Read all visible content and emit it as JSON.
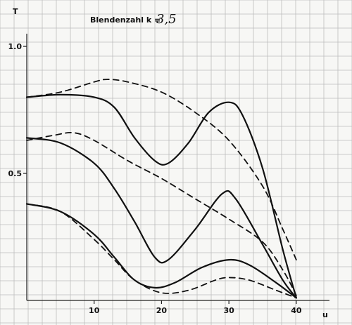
{
  "chart_data": {
    "type": "line",
    "title_prefix": "Blendenzahl k =",
    "title_value": "3,5",
    "ylabel": "T",
    "xlabel": "u",
    "xlim": [
      0,
      42
    ],
    "ylim": [
      0,
      1.05
    ],
    "grid": true,
    "x_ticks": [
      {
        "value": 10,
        "label": "10"
      },
      {
        "value": 20,
        "label": "20"
      },
      {
        "value": 30,
        "label": "30"
      },
      {
        "value": 40,
        "label": "40"
      }
    ],
    "y_ticks": [
      {
        "value": 1.0,
        "label": "1.0"
      },
      {
        "value": 0.5,
        "label": "0.5"
      }
    ],
    "series": [
      {
        "style": "solid",
        "points": [
          [
            0,
            0.8
          ],
          [
            5,
            0.81
          ],
          [
            10,
            0.8
          ],
          [
            13,
            0.76
          ],
          [
            16,
            0.64
          ],
          [
            19,
            0.55
          ],
          [
            21,
            0.54
          ],
          [
            24,
            0.62
          ],
          [
            27,
            0.74
          ],
          [
            30,
            0.78
          ],
          [
            32,
            0.73
          ],
          [
            35,
            0.52
          ],
          [
            38,
            0.2
          ],
          [
            40,
            0.01
          ]
        ]
      },
      {
        "style": "dashed",
        "points": [
          [
            0,
            0.8
          ],
          [
            5,
            0.82
          ],
          [
            10,
            0.86
          ],
          [
            12,
            0.87
          ],
          [
            15,
            0.86
          ],
          [
            20,
            0.82
          ],
          [
            25,
            0.74
          ],
          [
            30,
            0.63
          ],
          [
            35,
            0.45
          ],
          [
            38,
            0.28
          ],
          [
            40,
            0.16
          ]
        ]
      },
      {
        "style": "solid",
        "points": [
          [
            0,
            0.64
          ],
          [
            5,
            0.62
          ],
          [
            10,
            0.54
          ],
          [
            13,
            0.44
          ],
          [
            16,
            0.31
          ],
          [
            19,
            0.17
          ],
          [
            21,
            0.16
          ],
          [
            25,
            0.28
          ],
          [
            29,
            0.42
          ],
          [
            31,
            0.4
          ],
          [
            35,
            0.22
          ],
          [
            38,
            0.08
          ],
          [
            40,
            0.01
          ]
        ]
      },
      {
        "style": "dashed",
        "points": [
          [
            0,
            0.63
          ],
          [
            4,
            0.65
          ],
          [
            7,
            0.66
          ],
          [
            10,
            0.63
          ],
          [
            15,
            0.55
          ],
          [
            20,
            0.48
          ],
          [
            25,
            0.4
          ],
          [
            30,
            0.32
          ],
          [
            35,
            0.23
          ],
          [
            38,
            0.12
          ],
          [
            40,
            0.02
          ]
        ]
      },
      {
        "style": "solid",
        "points": [
          [
            0,
            0.38
          ],
          [
            5,
            0.35
          ],
          [
            10,
            0.26
          ],
          [
            13,
            0.17
          ],
          [
            16,
            0.08
          ],
          [
            19,
            0.05
          ],
          [
            22,
            0.07
          ],
          [
            26,
            0.13
          ],
          [
            30,
            0.16
          ],
          [
            33,
            0.14
          ],
          [
            37,
            0.07
          ],
          [
            40,
            0.01
          ]
        ]
      },
      {
        "style": "dashed",
        "points": [
          [
            0,
            0.38
          ],
          [
            5,
            0.35
          ],
          [
            10,
            0.24
          ],
          [
            13,
            0.16
          ],
          [
            16,
            0.08
          ],
          [
            20,
            0.03
          ],
          [
            24,
            0.04
          ],
          [
            28,
            0.08
          ],
          [
            30,
            0.09
          ],
          [
            33,
            0.08
          ],
          [
            37,
            0.04
          ],
          [
            40,
            0.01
          ]
        ]
      }
    ]
  }
}
